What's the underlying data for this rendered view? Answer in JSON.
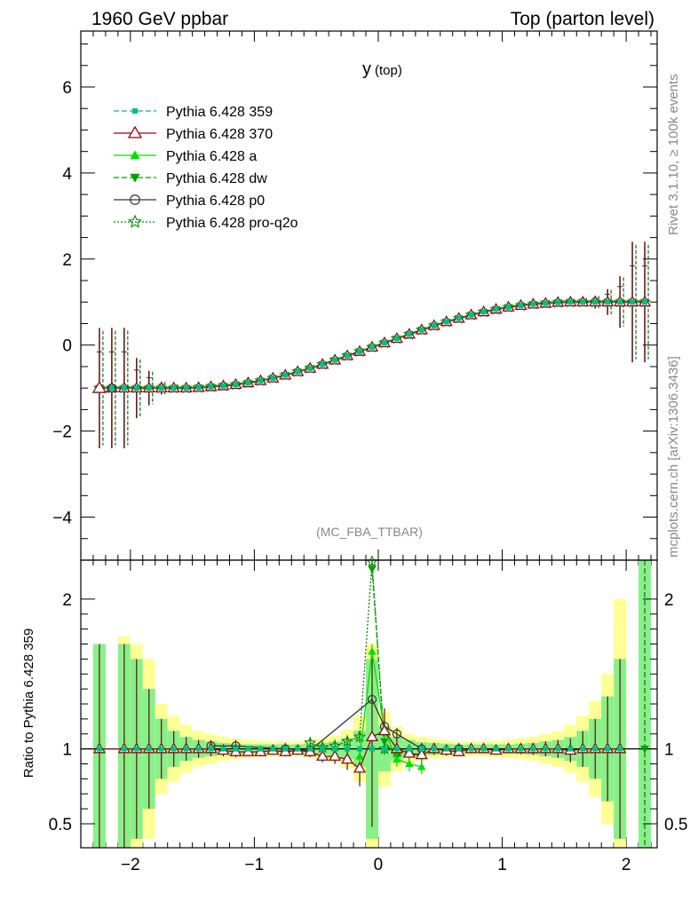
{
  "header": {
    "left": "1960 GeV ppbar",
    "right": "Top (parton level)"
  },
  "side": {
    "rivet": "Rivet 3.1.10, ≥ 100k events",
    "mcplots": "mcplots.cern.ch [arXiv:1306.3436]"
  },
  "chart_data": {
    "type": "line",
    "title": "y (top)",
    "title_main": "y",
    "title_sub": "(top)",
    "watermark": "(MC_FBA_TTBAR)",
    "xlabel": "",
    "ylabel": "",
    "xlim": [
      -2.4,
      2.25
    ],
    "ylim": [
      -5.0,
      7.3
    ],
    "x_ticks": [
      "−2",
      "−1",
      "0",
      "1",
      "2"
    ],
    "x_tick_values": [
      -2,
      -1,
      0,
      1,
      2
    ],
    "y_ticks": [
      "−4",
      "−2",
      "0",
      "2",
      "4",
      "6"
    ],
    "y_tick_values": [
      -4,
      -2,
      0,
      2,
      4,
      6
    ],
    "legend_position": "top-left",
    "series": [
      {
        "name": "Pythia 6.428 359",
        "color": "#00bf80",
        "dash": "6,3",
        "marker": "square"
      },
      {
        "name": "Pythia 6.428 370",
        "color": "#8b0a1a",
        "dash": "",
        "marker": "triangle-open"
      },
      {
        "name": "Pythia 6.428 a",
        "color": "#00e000",
        "dash": "",
        "marker": "triangle"
      },
      {
        "name": "Pythia 6.428 dw",
        "color": "#00a000",
        "dash": "6,3",
        "marker": "triangle-down"
      },
      {
        "name": "Pythia 6.428 p0",
        "color": "#333333",
        "dash": "",
        "marker": "circle-open"
      },
      {
        "name": "Pythia 6.428 pro-q2o",
        "color": "#0a8a0a",
        "dash": "2,2",
        "marker": "star"
      }
    ],
    "points": [
      {
        "x": -2.25,
        "y": -1.0,
        "err": 1.4
      },
      {
        "x": -2.15,
        "y": -1.0,
        "err": 1.4
      },
      {
        "x": -2.05,
        "y": -1.0,
        "err": 1.4
      },
      {
        "x": -1.95,
        "y": -1.0,
        "err": 0.7
      },
      {
        "x": -1.85,
        "y": -1.0,
        "err": 0.4
      },
      {
        "x": -1.75,
        "y": -1.0,
        "err": 0.15
      },
      {
        "x": -1.65,
        "y": -1.0,
        "err": 0.1
      },
      {
        "x": -1.55,
        "y": -1.0,
        "err": 0.06
      },
      {
        "x": -1.45,
        "y": -0.99,
        "err": 0.05
      },
      {
        "x": -1.35,
        "y": -0.97,
        "err": 0.04
      },
      {
        "x": -1.25,
        "y": -0.95,
        "err": 0.03
      },
      {
        "x": -1.15,
        "y": -0.92,
        "err": 0.03
      },
      {
        "x": -1.05,
        "y": -0.88,
        "err": 0.02
      },
      {
        "x": -0.95,
        "y": -0.83,
        "err": 0.02
      },
      {
        "x": -0.85,
        "y": -0.77,
        "err": 0.02
      },
      {
        "x": -0.75,
        "y": -0.7,
        "err": 0.02
      },
      {
        "x": -0.65,
        "y": -0.62,
        "err": 0.02
      },
      {
        "x": -0.55,
        "y": -0.54,
        "err": 0.02
      },
      {
        "x": -0.45,
        "y": -0.45,
        "err": 0.02
      },
      {
        "x": -0.35,
        "y": -0.35,
        "err": 0.02
      },
      {
        "x": -0.25,
        "y": -0.25,
        "err": 0.02
      },
      {
        "x": -0.15,
        "y": -0.15,
        "err": 0.02
      },
      {
        "x": -0.05,
        "y": -0.05,
        "err": 0.02
      },
      {
        "x": 0.05,
        "y": 0.05,
        "err": 0.02
      },
      {
        "x": 0.15,
        "y": 0.15,
        "err": 0.02
      },
      {
        "x": 0.25,
        "y": 0.25,
        "err": 0.02
      },
      {
        "x": 0.35,
        "y": 0.35,
        "err": 0.02
      },
      {
        "x": 0.45,
        "y": 0.45,
        "err": 0.02
      },
      {
        "x": 0.55,
        "y": 0.54,
        "err": 0.02
      },
      {
        "x": 0.65,
        "y": 0.62,
        "err": 0.02
      },
      {
        "x": 0.75,
        "y": 0.7,
        "err": 0.02
      },
      {
        "x": 0.85,
        "y": 0.77,
        "err": 0.02
      },
      {
        "x": 0.95,
        "y": 0.83,
        "err": 0.02
      },
      {
        "x": 1.05,
        "y": 0.88,
        "err": 0.02
      },
      {
        "x": 1.15,
        "y": 0.92,
        "err": 0.03
      },
      {
        "x": 1.25,
        "y": 0.95,
        "err": 0.03
      },
      {
        "x": 1.35,
        "y": 0.97,
        "err": 0.04
      },
      {
        "x": 1.45,
        "y": 0.99,
        "err": 0.05
      },
      {
        "x": 1.55,
        "y": 1.0,
        "err": 0.06
      },
      {
        "x": 1.65,
        "y": 1.0,
        "err": 0.1
      },
      {
        "x": 1.75,
        "y": 1.0,
        "err": 0.15
      },
      {
        "x": 1.85,
        "y": 1.0,
        "err": 0.3
      },
      {
        "x": 1.95,
        "y": 1.0,
        "err": 0.6
      },
      {
        "x": 2.05,
        "y": 1.0,
        "err": 1.4
      },
      {
        "x": 2.15,
        "y": 1.0,
        "err": 1.4
      }
    ],
    "ratio": {
      "ylabel": "Ratio to Pythia 6.428 359",
      "ylim": [
        0.34,
        2.26
      ],
      "y_ticks": [
        "0.5",
        "1",
        "2"
      ],
      "y_tick_values": [
        0.5,
        1,
        2
      ],
      "bands": [
        {
          "x": -2.25,
          "inner": 0.7,
          "outer": 0.7
        },
        {
          "x": -2.05,
          "inner": 0.7,
          "outer": 0.75
        },
        {
          "x": -1.95,
          "inner": 0.6,
          "outer": 0.7
        },
        {
          "x": -1.85,
          "inner": 0.4,
          "outer": 0.6
        },
        {
          "x": -1.75,
          "inner": 0.2,
          "outer": 0.3
        },
        {
          "x": -1.65,
          "inner": 0.12,
          "outer": 0.22
        },
        {
          "x": -1.55,
          "inner": 0.08,
          "outer": 0.16
        },
        {
          "x": -1.45,
          "inner": 0.06,
          "outer": 0.12
        },
        {
          "x": -1.35,
          "inner": 0.05,
          "outer": 0.1
        },
        {
          "x": -1.25,
          "inner": 0.04,
          "outer": 0.08
        },
        {
          "x": -1.15,
          "inner": 0.035,
          "outer": 0.07
        },
        {
          "x": -1.05,
          "inner": 0.03,
          "outer": 0.06
        },
        {
          "x": -0.95,
          "inner": 0.03,
          "outer": 0.055
        },
        {
          "x": -0.85,
          "inner": 0.03,
          "outer": 0.05
        },
        {
          "x": -0.75,
          "inner": 0.03,
          "outer": 0.05
        },
        {
          "x": -0.65,
          "inner": 0.03,
          "outer": 0.05
        },
        {
          "x": -0.55,
          "inner": 0.035,
          "outer": 0.06
        },
        {
          "x": -0.45,
          "inner": 0.04,
          "outer": 0.07
        },
        {
          "x": -0.35,
          "inner": 0.05,
          "outer": 0.09
        },
        {
          "x": -0.25,
          "inner": 0.07,
          "outer": 0.13
        },
        {
          "x": -0.15,
          "inner": 0.12,
          "outer": 0.22
        },
        {
          "x": -0.05,
          "inner": 0.6,
          "outer": 0.7
        },
        {
          "x": 0.05,
          "inner": 0.15,
          "outer": 0.25
        },
        {
          "x": 0.15,
          "inner": 0.08,
          "outer": 0.15
        },
        {
          "x": 0.25,
          "inner": 0.06,
          "outer": 0.1
        },
        {
          "x": 0.35,
          "inner": 0.045,
          "outer": 0.08
        },
        {
          "x": 0.45,
          "inner": 0.04,
          "outer": 0.065
        },
        {
          "x": 0.55,
          "inner": 0.035,
          "outer": 0.06
        },
        {
          "x": 0.65,
          "inner": 0.03,
          "outer": 0.05
        },
        {
          "x": 0.75,
          "inner": 0.03,
          "outer": 0.05
        },
        {
          "x": 0.85,
          "inner": 0.03,
          "outer": 0.05
        },
        {
          "x": 0.95,
          "inner": 0.03,
          "outer": 0.055
        },
        {
          "x": 1.05,
          "inner": 0.03,
          "outer": 0.06
        },
        {
          "x": 1.15,
          "inner": 0.035,
          "outer": 0.07
        },
        {
          "x": 1.25,
          "inner": 0.04,
          "outer": 0.08
        },
        {
          "x": 1.35,
          "inner": 0.05,
          "outer": 0.1
        },
        {
          "x": 1.45,
          "inner": 0.06,
          "outer": 0.12
        },
        {
          "x": 1.55,
          "inner": 0.08,
          "outer": 0.16
        },
        {
          "x": 1.65,
          "inner": 0.12,
          "outer": 0.22
        },
        {
          "x": 1.75,
          "inner": 0.2,
          "outer": 0.32
        },
        {
          "x": 1.85,
          "inner": 0.35,
          "outer": 0.5
        },
        {
          "x": 1.95,
          "inner": 0.6,
          "outer": 1.0
        },
        {
          "x": 2.05,
          "inner": 0.0,
          "outer": 0.0
        },
        {
          "x": 2.15,
          "inner": 1.3,
          "outer": 1.3
        }
      ],
      "p370": [
        [
          -2.25,
          1.0
        ],
        [
          -2.05,
          1.0
        ],
        [
          -1.95,
          1.0
        ],
        [
          -1.85,
          1.0
        ],
        [
          -1.75,
          1.0
        ],
        [
          -1.65,
          1.0
        ],
        [
          -1.55,
          1.0
        ],
        [
          -1.45,
          1.0
        ],
        [
          -1.35,
          1.0
        ],
        [
          -1.25,
          0.99
        ],
        [
          -1.15,
          0.98
        ],
        [
          -1.05,
          0.98
        ],
        [
          -0.95,
          0.98
        ],
        [
          -0.85,
          0.99
        ],
        [
          -0.75,
          0.98
        ],
        [
          -0.65,
          0.99
        ],
        [
          -0.55,
          0.98
        ],
        [
          -0.45,
          0.95
        ],
        [
          -0.35,
          0.95
        ],
        [
          -0.25,
          0.93
        ],
        [
          -0.15,
          0.87
        ],
        [
          -0.05,
          1.08
        ],
        [
          0.05,
          1.12
        ],
        [
          0.15,
          1.0
        ],
        [
          0.25,
          0.97
        ],
        [
          0.35,
          0.96
        ],
        [
          0.45,
          1.0
        ],
        [
          0.55,
          0.99
        ],
        [
          0.65,
          0.98
        ],
        [
          0.75,
          1.0
        ],
        [
          0.85,
          1.0
        ],
        [
          0.95,
          0.99
        ],
        [
          1.05,
          1.0
        ],
        [
          1.15,
          1.0
        ],
        [
          1.25,
          1.0
        ],
        [
          1.35,
          1.0
        ],
        [
          1.45,
          1.0
        ],
        [
          1.55,
          0.99
        ],
        [
          1.65,
          1.0
        ],
        [
          1.75,
          1.0
        ],
        [
          1.85,
          1.0
        ],
        [
          1.95,
          1.0
        ]
      ],
      "p0": [
        [
          -0.75,
          1.0
        ],
        [
          -0.55,
          0.99
        ],
        [
          -0.05,
          1.33
        ],
        [
          0.05,
          1.15
        ],
        [
          0.15,
          1.1
        ],
        [
          0.35,
          1.0
        ],
        [
          -1.35,
          1.02
        ],
        [
          -1.15,
          1.02
        ],
        [
          0.65,
          1.0
        ]
      ],
      "pa": [
        [
          -0.05,
          1.65
        ],
        [
          0.05,
          1.12
        ],
        [
          0.15,
          0.93
        ],
        [
          0.25,
          0.9
        ],
        [
          0.35,
          0.88
        ],
        [
          -0.15,
          0.95
        ]
      ],
      "pdw": [
        [
          -0.05,
          2.2
        ],
        [
          0.05,
          1.05
        ],
        [
          0.15,
          0.95
        ],
        [
          0.25,
          0.97
        ],
        [
          0.35,
          0.95
        ]
      ],
      "pq2o": [
        [
          -0.55,
          1.04
        ],
        [
          -0.45,
          1.01
        ],
        [
          -0.35,
          1.02
        ],
        [
          -0.25,
          1.05
        ],
        [
          -0.15,
          1.08
        ],
        [
          -0.05,
          2.25
        ],
        [
          0.05,
          1.0
        ],
        [
          0.15,
          0.98
        ]
      ]
    }
  }
}
